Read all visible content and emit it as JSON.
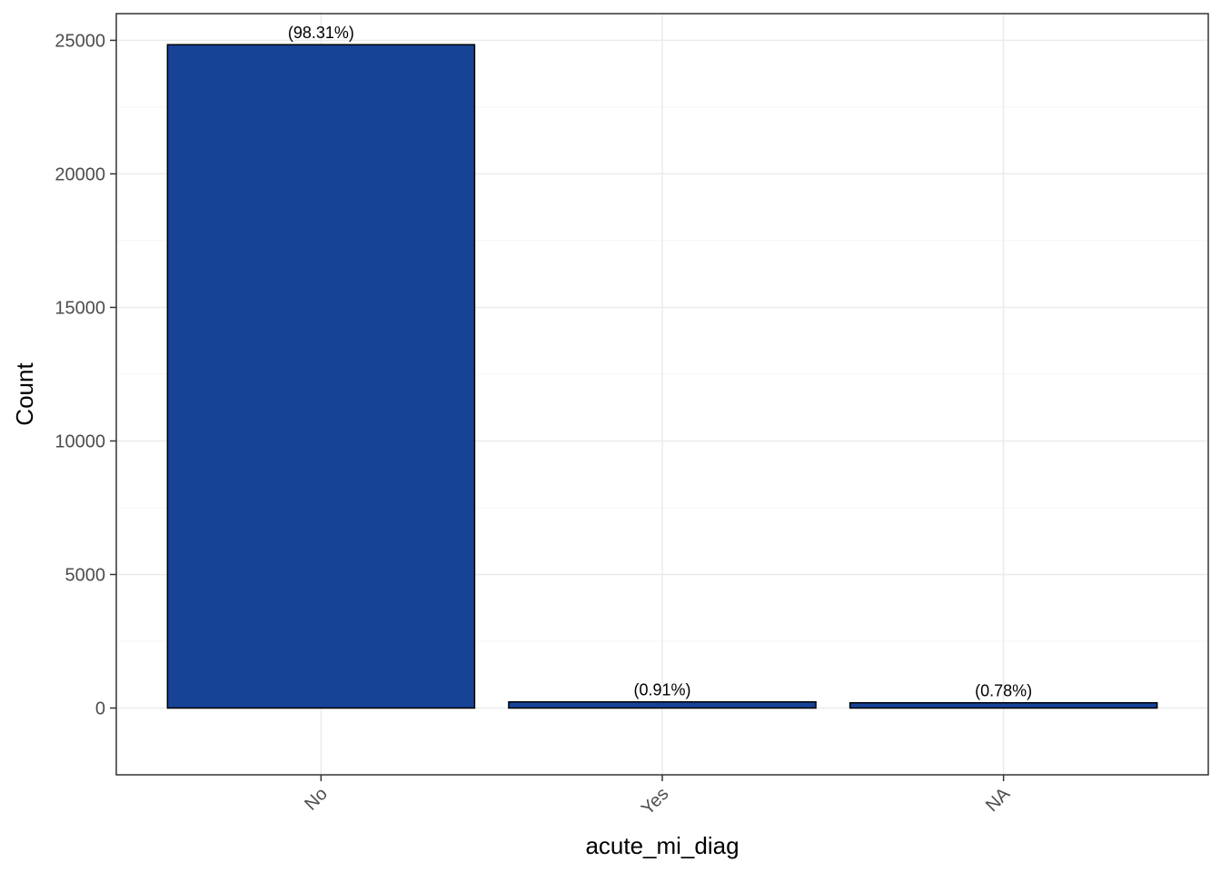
{
  "chart_data": {
    "type": "bar",
    "categories": [
      "No",
      "Yes",
      "NA"
    ],
    "values": [
      24837,
      230,
      197
    ],
    "data_labels": [
      "(98.31%)",
      "(0.91%)",
      "(0.78%)"
    ],
    "title": "",
    "xlabel": "acute_mi_diag",
    "ylabel": "Count",
    "ylim": [
      -2500,
      26000
    ],
    "yticks": [
      0,
      5000,
      10000,
      15000,
      20000,
      25000
    ],
    "ytick_labels": [
      "0",
      "5000",
      "10000",
      "15000",
      "20000",
      "25000"
    ],
    "grid": true,
    "legend": "none",
    "colors": {
      "bar_fill": "#174397",
      "bar_stroke": "#000000",
      "grid_major": "#ebebeb",
      "grid_minor": "#f4f4f4",
      "panel_border": "#333333"
    }
  }
}
